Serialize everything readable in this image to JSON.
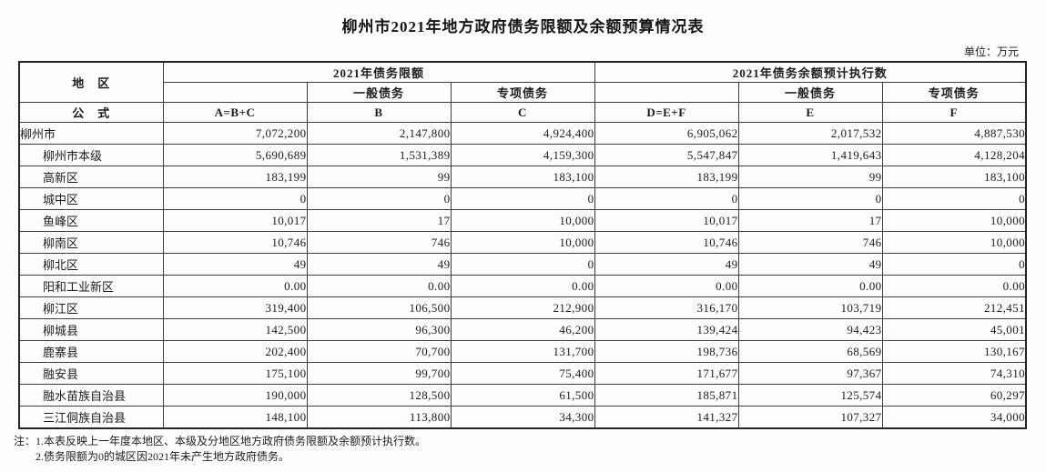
{
  "title": "柳州市2021年地方政府债务限额及余额预算情况表",
  "unit_label": "单位：万元",
  "table": {
    "region_header": "地　区",
    "formula_header": "公　式",
    "group_limit": "2021年债务限额",
    "group_balance": "2021年债务余额预计执行数",
    "sub_general": "一般债务",
    "sub_special": "专项债务",
    "formulas": [
      "A=B+C",
      "B",
      "C",
      "D=E+F",
      "E",
      "F"
    ],
    "rows": [
      {
        "region": "柳州市",
        "values": [
          "7,072,200",
          "2,147,800",
          "4,924,400",
          "6,905,062",
          "2,017,532",
          "4,887,530"
        ]
      },
      {
        "region": "柳州市本级",
        "values": [
          "5,690,689",
          "1,531,389",
          "4,159,300",
          "5,547,847",
          "1,419,643",
          "4,128,204"
        ]
      },
      {
        "region": "高新区",
        "values": [
          "183,199",
          "99",
          "183,100",
          "183,199",
          "99",
          "183,100"
        ]
      },
      {
        "region": "城中区",
        "values": [
          "0",
          "0",
          "0",
          "0",
          "0",
          "0"
        ]
      },
      {
        "region": "鱼峰区",
        "values": [
          "10,017",
          "17",
          "10,000",
          "10,017",
          "17",
          "10,000"
        ]
      },
      {
        "region": "柳南区",
        "values": [
          "10,746",
          "746",
          "10,000",
          "10,746",
          "746",
          "10,000"
        ]
      },
      {
        "region": "柳北区",
        "values": [
          "49",
          "49",
          "0",
          "49",
          "49",
          "0"
        ]
      },
      {
        "region": "阳和工业新区",
        "values": [
          "0.00",
          "0.00",
          "0.00",
          "0.00",
          "0.00",
          "0.00"
        ]
      },
      {
        "region": "柳江区",
        "values": [
          "319,400",
          "106,500",
          "212,900",
          "316,170",
          "103,719",
          "212,451"
        ]
      },
      {
        "region": "柳城县",
        "values": [
          "142,500",
          "96,300",
          "46,200",
          "139,424",
          "94,423",
          "45,001"
        ]
      },
      {
        "region": "鹿寨县",
        "values": [
          "202,400",
          "70,700",
          "131,700",
          "198,736",
          "68,569",
          "130,167"
        ]
      },
      {
        "region": "融安县",
        "values": [
          "175,100",
          "99,700",
          "75,400",
          "171,677",
          "97,367",
          "74,310"
        ]
      },
      {
        "region": "融水苗族自治县",
        "values": [
          "190,000",
          "128,500",
          "61,500",
          "185,871",
          "125,574",
          "60,297"
        ]
      },
      {
        "region": "三江侗族自治县",
        "values": [
          "148,100",
          "113,800",
          "34,300",
          "141,327",
          "107,327",
          "34,000"
        ]
      }
    ]
  },
  "notes": {
    "prefix": "注：",
    "line1": "1.本表反映上一年度本地区、本级及分地区地方政府债务限额及余额预计执行数。",
    "line2": "2.债务限额为0的城区因2021年未产生地方政府债务。"
  }
}
